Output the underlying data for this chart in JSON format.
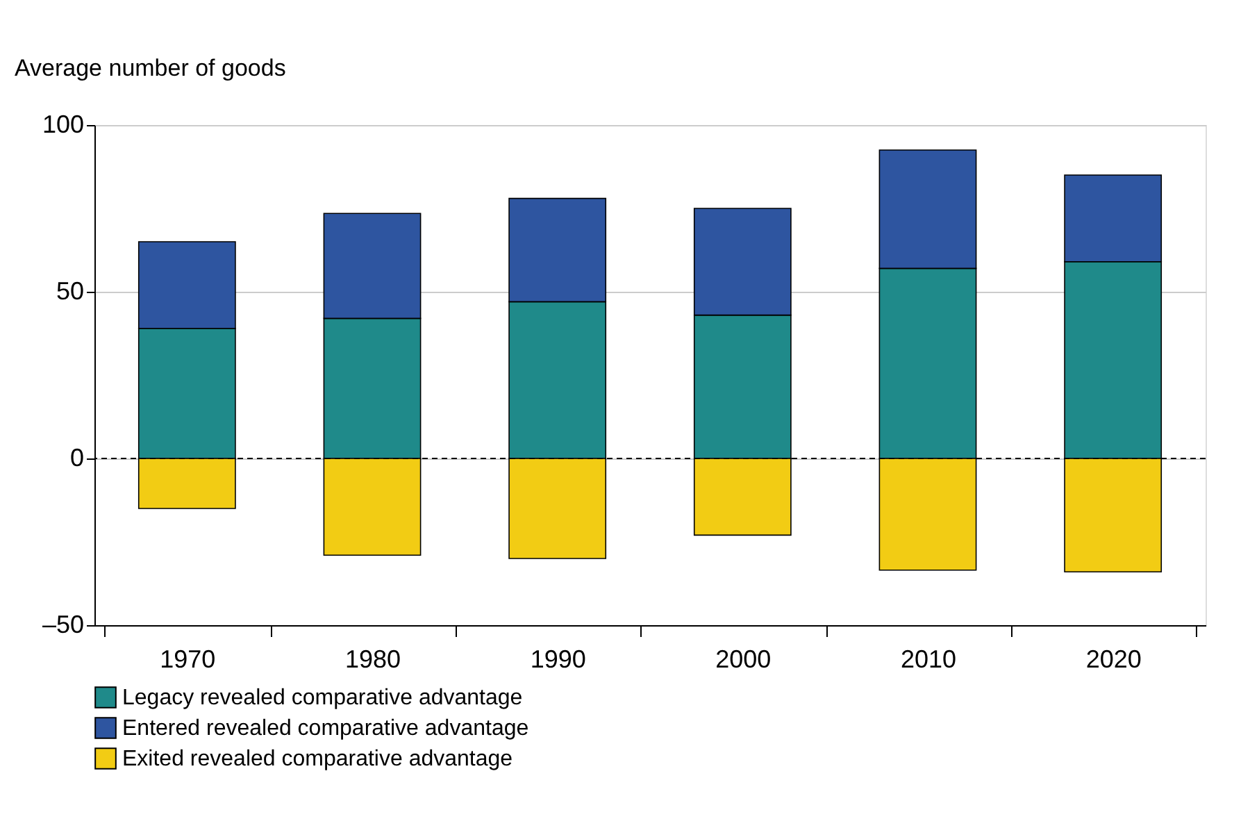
{
  "chart_data": {
    "type": "bar",
    "stacked": true,
    "ylabel": "Average number of goods",
    "categories": [
      "1970",
      "1980",
      "1990",
      "2000",
      "2010",
      "2020"
    ],
    "series": [
      {
        "name": "Legacy revealed comparative advantage",
        "color": "#1f8a8a",
        "values": [
          39,
          42,
          47,
          43,
          57,
          59
        ]
      },
      {
        "name": "Entered revealed comparative advantage",
        "color": "#2e55a0",
        "values": [
          26,
          31.5,
          31,
          32,
          35.5,
          26
        ]
      },
      {
        "name": "Exited revealed comparative advantage",
        "color": "#f2cc14",
        "values": [
          -15,
          -29,
          -30,
          -23,
          -33.5,
          -34
        ]
      }
    ],
    "ylim": [
      -50,
      100
    ],
    "yticks": [
      {
        "value": -50,
        "label": "–50"
      },
      0,
      50,
      100
    ],
    "grid": "y",
    "legend": "bottom",
    "ref_lines": [
      {
        "axis": "y",
        "value": 0,
        "line_style": "dashed",
        "color": "#000000"
      }
    ]
  }
}
